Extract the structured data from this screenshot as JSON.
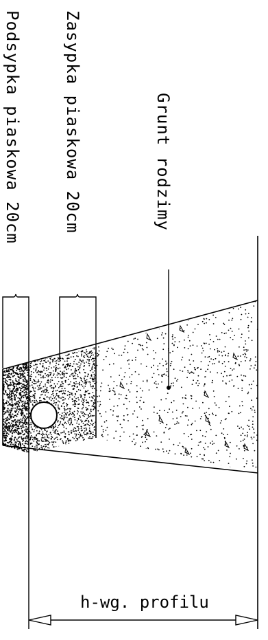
{
  "labels": {
    "native_soil": "Grunt rodzimy",
    "sand_backfill": "Zasypka piaskowa 20cm",
    "sand_bedding": "Podsypka piaskowa 20cm",
    "dimension": "h-wg. profilu"
  },
  "colors": {
    "line": "#000000",
    "background": "#ffffff"
  }
}
